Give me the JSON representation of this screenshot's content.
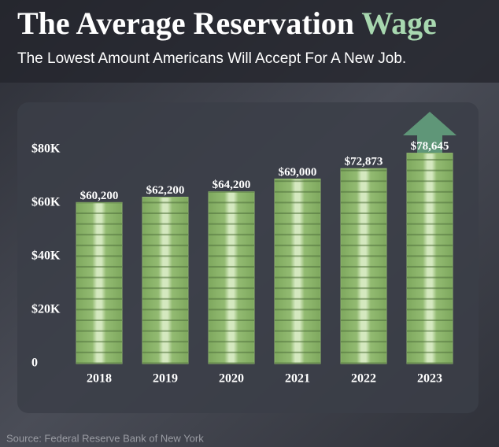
{
  "chart_data": {
    "type": "bar",
    "title": "The Average Reservation",
    "title_highlight": "Wage",
    "subtitle": "The Lowest Amount Americans Will Accept For A New Job.",
    "source": "Source: Federal Reserve Bank of New York",
    "categories": [
      "2018",
      "2019",
      "2020",
      "2021",
      "2022",
      "2023"
    ],
    "values": [
      60200,
      62200,
      64200,
      69000,
      72873,
      78645
    ],
    "value_labels": [
      "$60,200",
      "$62,200",
      "$64,200",
      "$69,000",
      "$72,873",
      "$78,645"
    ],
    "color": "#8fb56e",
    "highlight_color": "#a8d8b0",
    "ylim": [
      0,
      80000
    ],
    "yticks": [
      {
        "value": 0,
        "label": "0"
      },
      {
        "value": 20000,
        "label": "$20K"
      },
      {
        "value": 40000,
        "label": "$40K"
      },
      {
        "value": 60000,
        "label": "$60K"
      },
      {
        "value": 80000,
        "label": "$80K"
      }
    ]
  }
}
